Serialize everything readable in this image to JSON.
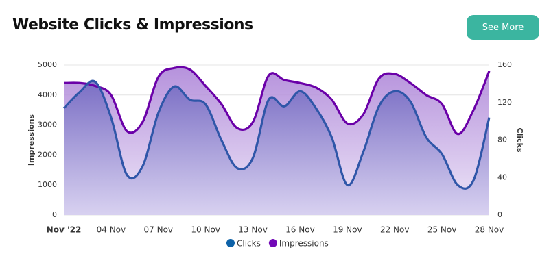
{
  "button": "See More",
  "chart_data": {
    "type": "line",
    "title": "Website Clicks & Impressions",
    "categories": [
      "Nov '22",
      null,
      null,
      "04 Nov",
      null,
      null,
      "07 Nov",
      null,
      null,
      "10 Nov",
      null,
      null,
      "13 Nov",
      null,
      null,
      "16 Nov",
      null,
      null,
      "19 Nov",
      null,
      null,
      "22 Nov",
      null,
      null,
      "25 Nov",
      null,
      null,
      "28 Nov"
    ],
    "series": [
      {
        "name": "Clicks",
        "color": "#2f56a8",
        "legend_color": "#0e62a8",
        "axis": "y2",
        "values": [
          114,
          131,
          142,
          104,
          43,
          52,
          109,
          137,
          123,
          118,
          80,
          50,
          61,
          123,
          116,
          132,
          114,
          83,
          32,
          67,
          116,
          132,
          121,
          83,
          65,
          32,
          37,
          104
        ]
      },
      {
        "name": "Impressions",
        "color": "#6a00a8",
        "legend_color": "#7209b7",
        "values": [
          4400,
          4400,
          4300,
          4000,
          2800,
          3100,
          4600,
          4900,
          4850,
          4300,
          3700,
          2900,
          3100,
          4650,
          4500,
          4400,
          4250,
          3850,
          3050,
          3350,
          4550,
          4700,
          4400,
          4000,
          3700,
          2700,
          3500,
          4800
        ]
      }
    ],
    "ylabel": "Impressions",
    "y2label": "Clicks",
    "ylim": [
      0,
      5000
    ],
    "yticks": [
      0,
      1000,
      2000,
      3000,
      4000,
      5000
    ],
    "y2lim": [
      0,
      160
    ],
    "y2ticks": [
      0,
      40,
      80,
      120,
      160
    ],
    "grid": true,
    "legend": "bottom"
  }
}
